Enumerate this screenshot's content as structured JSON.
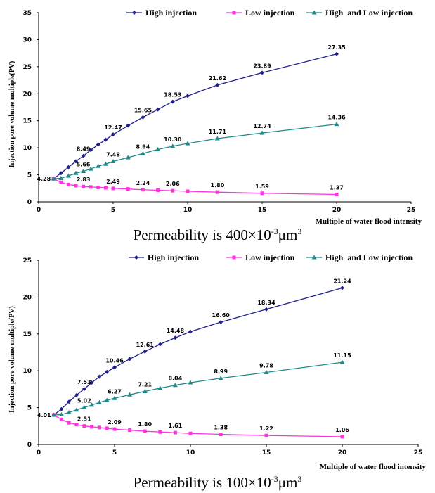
{
  "colors": {
    "high": "#1f1f8a",
    "low": "#ff33dd",
    "high_low": "#1f8a8a"
  },
  "chart_data": [
    {
      "type": "line",
      "caption_base": "Permeability is 400×10",
      "caption_exp": "-3",
      "caption_unit": "μm",
      "caption_unit_exp": "3",
      "xlabel": "Multiple of water flood intensity",
      "ylabel": "Injection pore volume multiple(PV)",
      "xlim": [
        0,
        25
      ],
      "ylim": [
        0,
        35
      ],
      "xticks": [
        0,
        5,
        10,
        15,
        20,
        25
      ],
      "yticks": [
        0,
        5,
        10,
        15,
        20,
        25,
        30,
        35
      ],
      "legend": "top-right",
      "series": [
        {
          "name": "High injection",
          "color_key": "high",
          "marker": "diamond",
          "x": [
            1,
            1.5,
            2,
            2.5,
            3,
            3.5,
            4,
            4.5,
            5,
            6,
            7,
            8,
            9,
            10,
            12,
            15,
            20
          ],
          "y": [
            4.28,
            5.3,
            6.4,
            7.5,
            8.49,
            9.6,
            10.6,
            11.5,
            12.47,
            14.1,
            15.65,
            17.1,
            18.53,
            19.6,
            21.62,
            23.89,
            27.35
          ]
        },
        {
          "name": "Low injection",
          "color_key": "low",
          "marker": "square",
          "x": [
            1,
            1.5,
            2,
            2.5,
            3,
            3.5,
            4,
            4.5,
            5,
            6,
            7,
            8,
            9,
            10,
            12,
            15,
            20
          ],
          "y": [
            4.28,
            3.6,
            3.2,
            3.0,
            2.83,
            2.75,
            2.68,
            2.6,
            2.49,
            2.38,
            2.24,
            2.15,
            2.06,
            1.95,
            1.8,
            1.59,
            1.37
          ]
        },
        {
          "name": "High  and Low injection",
          "color_key": "high_low",
          "marker": "triangle",
          "x": [
            1,
            1.5,
            2,
            2.5,
            3,
            3.5,
            4,
            4.5,
            5,
            6,
            7,
            8,
            9,
            10,
            12,
            15,
            20
          ],
          "y": [
            4.28,
            4.35,
            4.8,
            5.3,
            5.66,
            6.1,
            6.6,
            7.0,
            7.48,
            8.2,
            8.94,
            9.7,
            10.3,
            10.8,
            11.71,
            12.74,
            14.36
          ]
        }
      ],
      "data_labels": [
        {
          "x": 1,
          "y": 4.28,
          "text": "4.28",
          "anchor": "left"
        },
        {
          "x": 3,
          "y": 8.49,
          "text": "8.49"
        },
        {
          "x": 5,
          "y": 12.47,
          "text": "12.47"
        },
        {
          "x": 7,
          "y": 15.65,
          "text": "15.65"
        },
        {
          "x": 9,
          "y": 18.53,
          "text": "18.53"
        },
        {
          "x": 12,
          "y": 21.62,
          "text": "21.62"
        },
        {
          "x": 15,
          "y": 23.89,
          "text": "23.89"
        },
        {
          "x": 20,
          "y": 27.35,
          "text": "27.35"
        },
        {
          "x": 3,
          "y": 5.66,
          "text": "5.66"
        },
        {
          "x": 5,
          "y": 7.48,
          "text": "7.48"
        },
        {
          "x": 7,
          "y": 8.94,
          "text": "8.94"
        },
        {
          "x": 9,
          "y": 10.3,
          "text": "10.30"
        },
        {
          "x": 12,
          "y": 11.71,
          "text": "11.71"
        },
        {
          "x": 15,
          "y": 12.74,
          "text": "12.74"
        },
        {
          "x": 20,
          "y": 14.36,
          "text": "14.36"
        },
        {
          "x": 3,
          "y": 2.83,
          "text": "2.83"
        },
        {
          "x": 5,
          "y": 2.49,
          "text": "2.49"
        },
        {
          "x": 7,
          "y": 2.24,
          "text": "2.24"
        },
        {
          "x": 9,
          "y": 2.06,
          "text": "2.06"
        },
        {
          "x": 12,
          "y": 1.8,
          "text": "1.80"
        },
        {
          "x": 15,
          "y": 1.59,
          "text": "1.59"
        },
        {
          "x": 20,
          "y": 1.37,
          "text": "1.37"
        }
      ]
    },
    {
      "type": "line",
      "caption_base": "Permeability is 100×10",
      "caption_exp": "-3",
      "caption_unit": "μm",
      "caption_unit_exp": "3",
      "xlabel": "Multiple of water flood intensity",
      "ylabel": "Injection pore volume multiple(PV)",
      "xlim": [
        0,
        25
      ],
      "ylim": [
        0,
        25
      ],
      "xticks": [
        0,
        5,
        10,
        15,
        20,
        25
      ],
      "yticks": [
        0,
        5,
        10,
        15,
        20,
        25
      ],
      "legend": "top-right",
      "series": [
        {
          "name": "High injection",
          "color_key": "high",
          "marker": "diamond",
          "x": [
            1,
            1.5,
            2,
            2.5,
            3,
            3.5,
            4,
            4.5,
            5,
            6,
            7,
            8,
            9,
            10,
            12,
            15,
            20
          ],
          "y": [
            4.01,
            4.8,
            5.8,
            6.7,
            7.53,
            8.4,
            9.2,
            9.85,
            10.46,
            11.6,
            12.61,
            13.6,
            14.48,
            15.3,
            16.6,
            18.34,
            21.24
          ]
        },
        {
          "name": "Low injection",
          "color_key": "low",
          "marker": "square",
          "x": [
            1,
            1.5,
            2,
            2.5,
            3,
            3.5,
            4,
            4.5,
            5,
            6,
            7,
            8,
            9,
            10,
            12,
            15,
            20
          ],
          "y": [
            4.01,
            3.4,
            2.95,
            2.7,
            2.51,
            2.4,
            2.3,
            2.2,
            2.09,
            1.95,
            1.8,
            1.7,
            1.61,
            1.5,
            1.38,
            1.22,
            1.06
          ]
        },
        {
          "name": "High  and Low injection",
          "color_key": "high_low",
          "marker": "triangle",
          "x": [
            1,
            1.5,
            2,
            2.5,
            3,
            3.5,
            4,
            4.5,
            5,
            6,
            7,
            8,
            9,
            10,
            12,
            15,
            20
          ],
          "y": [
            4.01,
            4.05,
            4.35,
            4.7,
            5.02,
            5.35,
            5.7,
            6.0,
            6.27,
            6.75,
            7.21,
            7.65,
            8.04,
            8.4,
            8.99,
            9.78,
            11.15
          ]
        }
      ],
      "data_labels": [
        {
          "x": 1,
          "y": 4.01,
          "text": "4.01",
          "anchor": "left"
        },
        {
          "x": 3,
          "y": 7.53,
          "text": "7.53"
        },
        {
          "x": 5,
          "y": 10.46,
          "text": "10.46"
        },
        {
          "x": 7,
          "y": 12.61,
          "text": "12.61"
        },
        {
          "x": 9,
          "y": 14.48,
          "text": "14.48"
        },
        {
          "x": 12,
          "y": 16.6,
          "text": "16.60"
        },
        {
          "x": 15,
          "y": 18.34,
          "text": "18.34"
        },
        {
          "x": 20,
          "y": 21.24,
          "text": "21.24"
        },
        {
          "x": 3,
          "y": 5.02,
          "text": "5.02"
        },
        {
          "x": 5,
          "y": 6.27,
          "text": "6.27"
        },
        {
          "x": 7,
          "y": 7.21,
          "text": "7.21"
        },
        {
          "x": 9,
          "y": 8.04,
          "text": "8.04"
        },
        {
          "x": 12,
          "y": 8.99,
          "text": "8.99"
        },
        {
          "x": 15,
          "y": 9.78,
          "text": "9.78"
        },
        {
          "x": 20,
          "y": 11.15,
          "text": "11.15"
        },
        {
          "x": 3,
          "y": 2.51,
          "text": "2.51"
        },
        {
          "x": 5,
          "y": 2.09,
          "text": "2.09"
        },
        {
          "x": 7,
          "y": 1.8,
          "text": "1.80"
        },
        {
          "x": 9,
          "y": 1.61,
          "text": "1.61"
        },
        {
          "x": 12,
          "y": 1.38,
          "text": "1.38"
        },
        {
          "x": 15,
          "y": 1.22,
          "text": "1.22"
        },
        {
          "x": 20,
          "y": 1.06,
          "text": "1.06"
        }
      ]
    }
  ]
}
